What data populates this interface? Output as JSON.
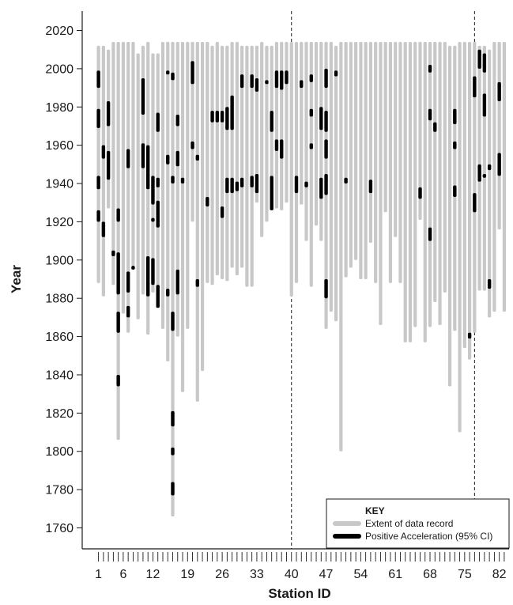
{
  "chart_data": {
    "type": "range-bar",
    "xlabel": "Station ID",
    "ylabel": "Year",
    "xlim": [
      0,
      84
    ],
    "ylim": [
      1750,
      2027
    ],
    "x_tick_labels": [
      1,
      6,
      12,
      19,
      26,
      33,
      40,
      47,
      54,
      61,
      68,
      75,
      82
    ],
    "y_ticks": [
      1760,
      1780,
      1800,
      1820,
      1840,
      1860,
      1880,
      1900,
      1920,
      1940,
      1960,
      1980,
      2000,
      2020
    ],
    "reference_lines": [
      40,
      77
    ],
    "legend": {
      "title": "KEY",
      "entries": [
        {
          "label": "Extent of data record",
          "color": "#c8c8c8"
        },
        {
          "label": "Positive Acceleration (95% CI)",
          "color": "#000000"
        }
      ],
      "position": "bottom-right"
    },
    "series": [
      {
        "name": "Extent of data record",
        "color": "#c8c8c8",
        "ranges": [
          [
            1,
            1888,
            2012
          ],
          [
            2,
            1881,
            2012
          ],
          [
            3,
            1927,
            2010
          ],
          [
            4,
            1887,
            2014
          ],
          [
            5,
            1806,
            2014
          ],
          [
            6,
            1872,
            2014
          ],
          [
            7,
            1862,
            2014
          ],
          [
            8,
            1897,
            2014
          ],
          [
            9,
            1869,
            2008
          ],
          [
            10,
            1882,
            2012
          ],
          [
            11,
            1861,
            2014
          ],
          [
            12,
            1883,
            2008
          ],
          [
            13,
            1880,
            2008
          ],
          [
            14,
            1864,
            2014
          ],
          [
            15,
            1847,
            2014
          ],
          [
            16,
            1766,
            2014
          ],
          [
            17,
            1860,
            2014
          ],
          [
            18,
            1831,
            2014
          ],
          [
            19,
            1864,
            2014
          ],
          [
            20,
            1920,
            2014
          ],
          [
            21,
            1826,
            2014
          ],
          [
            22,
            1842,
            2014
          ],
          [
            23,
            1888,
            2014
          ],
          [
            24,
            1887,
            2012
          ],
          [
            25,
            1892,
            2014
          ],
          [
            26,
            1890,
            2012
          ],
          [
            27,
            1889,
            2012
          ],
          [
            28,
            1896,
            2014
          ],
          [
            29,
            1892,
            2014
          ],
          [
            30,
            1896,
            2012
          ],
          [
            31,
            1886,
            2012
          ],
          [
            32,
            1886,
            2012
          ],
          [
            33,
            1930,
            2012
          ],
          [
            34,
            1912,
            2014
          ],
          [
            35,
            1920,
            2012
          ],
          [
            36,
            1926,
            2012
          ],
          [
            37,
            1927,
            2014
          ],
          [
            38,
            1926,
            2014
          ],
          [
            39,
            1930,
            2014
          ],
          [
            40,
            1881,
            2014
          ],
          [
            41,
            1888,
            2014
          ],
          [
            42,
            1929,
            2014
          ],
          [
            43,
            1910,
            2014
          ],
          [
            44,
            1886,
            2014
          ],
          [
            45,
            1918,
            2014
          ],
          [
            46,
            1910,
            2014
          ],
          [
            47,
            1864,
            2014
          ],
          [
            48,
            1873,
            2014
          ],
          [
            49,
            1868,
            2012
          ],
          [
            50,
            1800,
            2014
          ],
          [
            51,
            1891,
            2014
          ],
          [
            52,
            1896,
            2014
          ],
          [
            53,
            1900,
            2014
          ],
          [
            54,
            1890,
            2014
          ],
          [
            55,
            1890,
            2014
          ],
          [
            56,
            1909,
            2014
          ],
          [
            57,
            1888,
            2014
          ],
          [
            58,
            1866,
            2014
          ],
          [
            59,
            1925,
            2014
          ],
          [
            60,
            1888,
            2014
          ],
          [
            61,
            1912,
            2014
          ],
          [
            62,
            1888,
            2014
          ],
          [
            63,
            1857,
            2014
          ],
          [
            64,
            1857,
            2014
          ],
          [
            65,
            1865,
            2014
          ],
          [
            66,
            1921,
            2014
          ],
          [
            67,
            1857,
            2014
          ],
          [
            68,
            1865,
            2014
          ],
          [
            69,
            1878,
            2014
          ],
          [
            70,
            1866,
            2014
          ],
          [
            71,
            1883,
            2014
          ],
          [
            72,
            1834,
            2012
          ],
          [
            73,
            1863,
            2012
          ],
          [
            74,
            1810,
            2014
          ],
          [
            75,
            1854,
            2014
          ],
          [
            76,
            1848,
            2014
          ],
          [
            77,
            1862,
            2014
          ],
          [
            78,
            1884,
            2012
          ],
          [
            79,
            1884,
            2012
          ],
          [
            80,
            1870,
            2010
          ],
          [
            81,
            1873,
            2014
          ],
          [
            82,
            1916,
            2014
          ],
          [
            83,
            1873,
            2014
          ]
        ]
      },
      {
        "name": "Positive Acceleration (95% CI)",
        "color": "#000000",
        "ranges": [
          [
            1,
            1920,
            1926
          ],
          [
            1,
            1937,
            1944
          ],
          [
            1,
            1969,
            1979
          ],
          [
            1,
            1990,
            1999
          ],
          [
            2,
            1912,
            1920
          ],
          [
            2,
            1953,
            1960
          ],
          [
            3,
            1942,
            1957
          ],
          [
            3,
            1970,
            1983
          ],
          [
            4,
            1902,
            1905
          ],
          [
            5,
            1882,
            1904
          ],
          [
            5,
            1862,
            1873
          ],
          [
            5,
            1834,
            1840
          ],
          [
            5,
            1920,
            1927
          ],
          [
            7,
            1870,
            1876
          ],
          [
            7,
            1883,
            1894
          ],
          [
            7,
            1948,
            1958
          ],
          [
            8,
            1895,
            1897
          ],
          [
            10,
            1948,
            1961
          ],
          [
            10,
            1976,
            1995
          ],
          [
            11,
            1881,
            1902
          ],
          [
            11,
            1937,
            1960
          ],
          [
            12,
            1887,
            1901
          ],
          [
            12,
            1929,
            1944
          ],
          [
            12,
            1920,
            1922
          ],
          [
            13,
            1875,
            1887
          ],
          [
            13,
            1917,
            1931
          ],
          [
            13,
            1938,
            1943
          ],
          [
            13,
            1967,
            1977
          ],
          [
            15,
            1881,
            1885
          ],
          [
            15,
            1950,
            1955
          ],
          [
            15,
            1997,
            1999
          ],
          [
            16,
            1777,
            1784
          ],
          [
            16,
            1798,
            1802
          ],
          [
            16,
            1813,
            1821
          ],
          [
            16,
            1863,
            1873
          ],
          [
            16,
            1940,
            1944
          ],
          [
            16,
            1994,
            1998
          ],
          [
            17,
            1882,
            1895
          ],
          [
            17,
            1949,
            1957
          ],
          [
            17,
            1970,
            1976
          ],
          [
            18,
            1940,
            1943
          ],
          [
            20,
            1958,
            1962
          ],
          [
            20,
            1992,
            2004
          ],
          [
            21,
            1886,
            1890
          ],
          [
            21,
            1952,
            1955
          ],
          [
            23,
            1928,
            1933
          ],
          [
            24,
            1972,
            1978
          ],
          [
            25,
            1972,
            1978
          ],
          [
            26,
            1922,
            1928
          ],
          [
            26,
            1972,
            1978
          ],
          [
            27,
            1935,
            1943
          ],
          [
            27,
            1968,
            1980
          ],
          [
            28,
            1935,
            1943
          ],
          [
            28,
            1968,
            1986
          ],
          [
            29,
            1936,
            1941
          ],
          [
            30,
            1938,
            1943
          ],
          [
            30,
            1990,
            1997
          ],
          [
            32,
            1938,
            1944
          ],
          [
            32,
            1990,
            1997
          ],
          [
            33,
            1935,
            1945
          ],
          [
            33,
            1988,
            1995
          ],
          [
            35,
            1992,
            1994
          ],
          [
            36,
            1926,
            1944
          ],
          [
            36,
            1967,
            1978
          ],
          [
            37,
            1957,
            1963
          ],
          [
            37,
            1990,
            1999
          ],
          [
            38,
            1953,
            1963
          ],
          [
            38,
            1989,
            1999
          ],
          [
            39,
            1992,
            1999
          ],
          [
            41,
            1935,
            1944
          ],
          [
            42,
            1990,
            1994
          ],
          [
            43,
            1938,
            1941
          ],
          [
            44,
            1975,
            1979
          ],
          [
            44,
            1993,
            1997
          ],
          [
            44,
            1958,
            1961
          ],
          [
            46,
            1932,
            1943
          ],
          [
            46,
            1968,
            1980
          ],
          [
            47,
            1880,
            1890
          ],
          [
            47,
            1934,
            1945
          ],
          [
            47,
            1953,
            1963
          ],
          [
            47,
            1967,
            1978
          ],
          [
            47,
            1990,
            2000
          ],
          [
            49,
            1996,
            1999
          ],
          [
            51,
            1940,
            1943
          ],
          [
            56,
            1935,
            1942
          ],
          [
            66,
            1932,
            1938
          ],
          [
            68,
            1910,
            1917
          ],
          [
            68,
            1973,
            1979
          ],
          [
            68,
            1998,
            2002
          ],
          [
            69,
            1967,
            1972
          ],
          [
            73,
            1933,
            1939
          ],
          [
            73,
            1958,
            1962
          ],
          [
            73,
            1971,
            1979
          ],
          [
            76,
            1859,
            1862
          ],
          [
            77,
            1925,
            1935
          ],
          [
            77,
            1985,
            1996
          ],
          [
            78,
            1941,
            1950
          ],
          [
            78,
            2000,
            2010
          ],
          [
            79,
            1943,
            1945
          ],
          [
            79,
            1975,
            1987
          ],
          [
            79,
            1998,
            2008
          ],
          [
            80,
            1885,
            1890
          ],
          [
            80,
            1947,
            1950
          ],
          [
            82,
            1944,
            1956
          ],
          [
            82,
            1983,
            1993
          ]
        ]
      }
    ]
  }
}
